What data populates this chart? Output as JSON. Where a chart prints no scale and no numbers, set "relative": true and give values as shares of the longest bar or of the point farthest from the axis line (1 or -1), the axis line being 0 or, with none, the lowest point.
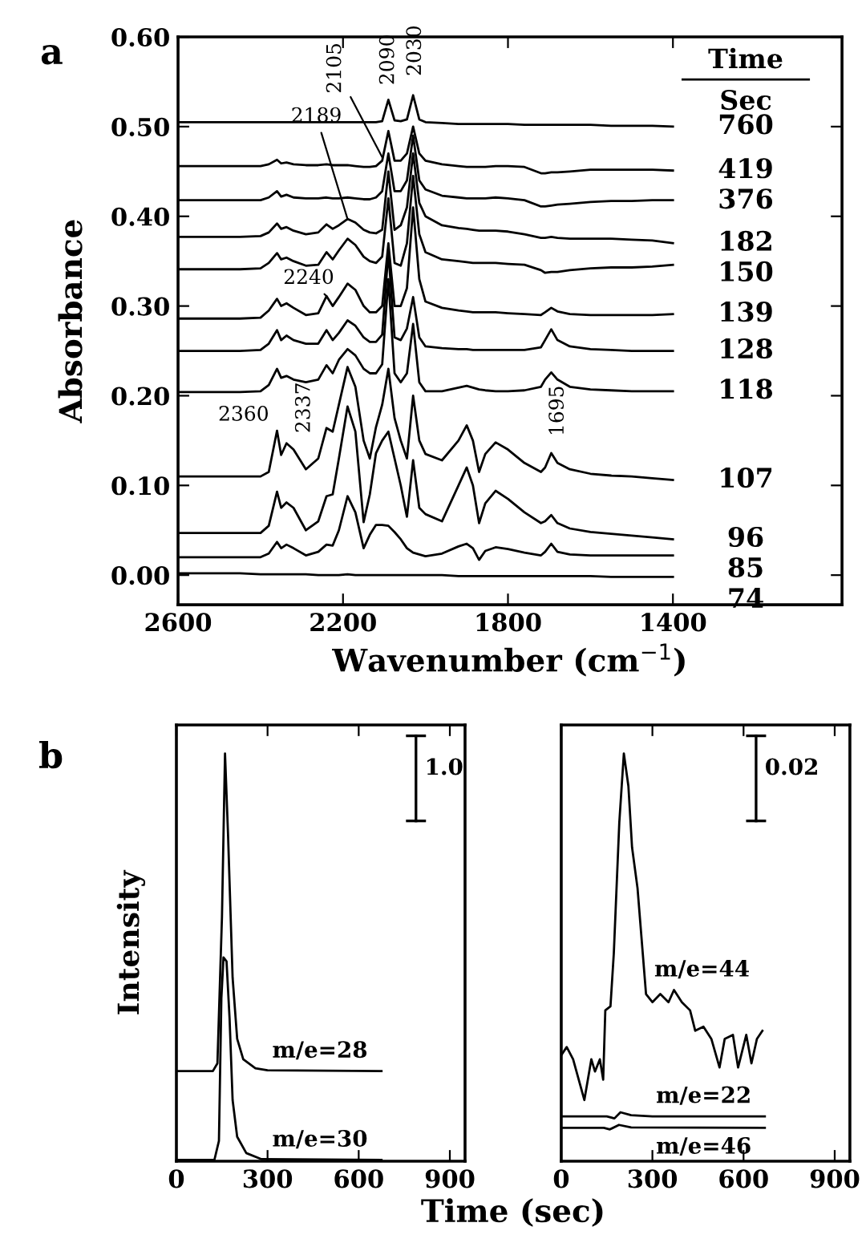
{
  "chart_data": [
    {
      "type": "line",
      "title": "a",
      "xlabel": "Wavenumber (cm$^{−1}$)",
      "ylabel": "Absorbance",
      "legend_title": "Time",
      "legend": "right",
      "color": "#000000",
      "xlim": [
        2600,
        990
      ],
      "xticks": [
        2600,
        2200,
        1800,
        1400
      ],
      "ylim": [
        -0.033,
        0.6
      ],
      "yticks": [
        {
          "value": 0,
          "label": "0.00"
        },
        {
          "value": 0.1,
          "label": "0.10"
        },
        {
          "value": 0.2,
          "label": "0.20"
        },
        {
          "value": 0.3,
          "label": "0.30"
        },
        {
          "value": 0.4,
          "label": "0.40"
        },
        {
          "value": 0.5,
          "label": "0.50"
        },
        {
          "value": 0.6,
          "label": "0.60"
        }
      ],
      "annotations": [
        {
          "text": "2105",
          "x": 2105,
          "y": 0.466
        },
        {
          "text": "2090",
          "x": 2090,
          "y": 0.53
        },
        {
          "text": "2030",
          "x": 2030,
          "y": 0.535
        },
        {
          "text": "2189",
          "x": 2189,
          "y": 0.397
        },
        {
          "text": "2240",
          "x": 2240,
          "y": 0.311
        },
        {
          "text": "2360",
          "x": 2360,
          "y": 0.161
        },
        {
          "text": "2337",
          "x": 2337,
          "y": 0.147
        },
        {
          "text": "1695",
          "x": 1695,
          "y": 0.136
        },
        "Sec"
      ],
      "x": [
        2600,
        2450,
        2400,
        2380,
        2360,
        2350,
        2337,
        2320,
        2290,
        2260,
        2240,
        2225,
        2210,
        2189,
        2170,
        2150,
        2135,
        2120,
        2105,
        2090,
        2075,
        2060,
        2045,
        2030,
        2015,
        2000,
        1960,
        1920,
        1900,
        1885,
        1870,
        1855,
        1830,
        1800,
        1760,
        1720,
        1710,
        1695,
        1680,
        1650,
        1600,
        1550,
        1500,
        1450,
        1400
      ],
      "series": [
        {
          "name": "760",
          "values": [
            0.505,
            0.505,
            0.505,
            0.505,
            0.505,
            0.505,
            0.505,
            0.505,
            0.505,
            0.505,
            0.505,
            0.505,
            0.505,
            0.505,
            0.505,
            0.505,
            0.505,
            0.505,
            0.506,
            0.53,
            0.507,
            0.506,
            0.508,
            0.535,
            0.508,
            0.505,
            0.504,
            0.503,
            0.503,
            0.503,
            0.503,
            0.503,
            0.503,
            0.503,
            0.502,
            0.502,
            0.502,
            0.502,
            0.502,
            0.502,
            0.502,
            0.501,
            0.501,
            0.501,
            0.5
          ]
        },
        {
          "name": "419",
          "values": [
            0.456,
            0.456,
            0.456,
            0.458,
            0.463,
            0.459,
            0.46,
            0.458,
            0.457,
            0.457,
            0.458,
            0.457,
            0.457,
            0.457,
            0.456,
            0.455,
            0.455,
            0.456,
            0.462,
            0.495,
            0.462,
            0.462,
            0.47,
            0.5,
            0.47,
            0.462,
            0.458,
            0.456,
            0.455,
            0.455,
            0.455,
            0.455,
            0.456,
            0.456,
            0.455,
            0.448,
            0.448,
            0.449,
            0.449,
            0.45,
            0.452,
            0.452,
            0.452,
            0.452,
            0.451
          ]
        },
        {
          "name": "376",
          "values": [
            0.418,
            0.418,
            0.418,
            0.421,
            0.428,
            0.422,
            0.424,
            0.421,
            0.42,
            0.42,
            0.421,
            0.42,
            0.42,
            0.421,
            0.42,
            0.419,
            0.419,
            0.421,
            0.428,
            0.47,
            0.428,
            0.428,
            0.44,
            0.49,
            0.44,
            0.43,
            0.423,
            0.421,
            0.42,
            0.42,
            0.42,
            0.42,
            0.421,
            0.42,
            0.418,
            0.411,
            0.411,
            0.412,
            0.413,
            0.414,
            0.416,
            0.417,
            0.417,
            0.418,
            0.418
          ]
        },
        {
          "name": "182",
          "values": [
            0.377,
            0.377,
            0.378,
            0.382,
            0.392,
            0.386,
            0.388,
            0.384,
            0.38,
            0.382,
            0.391,
            0.386,
            0.39,
            0.397,
            0.393,
            0.385,
            0.382,
            0.381,
            0.385,
            0.45,
            0.385,
            0.39,
            0.41,
            0.47,
            0.415,
            0.4,
            0.39,
            0.387,
            0.386,
            0.385,
            0.384,
            0.384,
            0.384,
            0.383,
            0.38,
            0.376,
            0.376,
            0.377,
            0.376,
            0.375,
            0.375,
            0.375,
            0.374,
            0.373,
            0.37
          ]
        },
        {
          "name": "150",
          "values": [
            0.341,
            0.341,
            0.342,
            0.348,
            0.359,
            0.352,
            0.354,
            0.35,
            0.345,
            0.346,
            0.36,
            0.352,
            0.362,
            0.375,
            0.368,
            0.355,
            0.35,
            0.348,
            0.355,
            0.42,
            0.348,
            0.345,
            0.37,
            0.445,
            0.38,
            0.36,
            0.352,
            0.35,
            0.349,
            0.348,
            0.348,
            0.348,
            0.348,
            0.347,
            0.346,
            0.34,
            0.337,
            0.338,
            0.338,
            0.34,
            0.342,
            0.343,
            0.343,
            0.344,
            0.346
          ]
        },
        {
          "name": "139",
          "values": [
            0.286,
            0.286,
            0.287,
            0.295,
            0.308,
            0.3,
            0.303,
            0.298,
            0.29,
            0.292,
            0.311,
            0.3,
            0.31,
            0.325,
            0.318,
            0.3,
            0.293,
            0.293,
            0.3,
            0.37,
            0.3,
            0.3,
            0.32,
            0.41,
            0.33,
            0.305,
            0.298,
            0.295,
            0.294,
            0.293,
            0.293,
            0.293,
            0.293,
            0.292,
            0.291,
            0.29,
            0.293,
            0.298,
            0.294,
            0.291,
            0.29,
            0.29,
            0.29,
            0.29,
            0.291
          ]
        },
        {
          "name": "128",
          "values": [
            0.25,
            0.25,
            0.251,
            0.258,
            0.273,
            0.262,
            0.267,
            0.262,
            0.258,
            0.258,
            0.273,
            0.262,
            0.27,
            0.284,
            0.278,
            0.265,
            0.26,
            0.26,
            0.268,
            0.36,
            0.265,
            0.262,
            0.275,
            0.31,
            0.265,
            0.255,
            0.253,
            0.252,
            0.252,
            0.251,
            0.251,
            0.251,
            0.251,
            0.251,
            0.251,
            0.254,
            0.262,
            0.274,
            0.262,
            0.255,
            0.252,
            0.251,
            0.25,
            0.25,
            0.25
          ]
        },
        {
          "name": "118",
          "values": [
            0.204,
            0.204,
            0.205,
            0.212,
            0.23,
            0.22,
            0.222,
            0.218,
            0.215,
            0.218,
            0.234,
            0.225,
            0.24,
            0.252,
            0.245,
            0.23,
            0.225,
            0.225,
            0.235,
            0.33,
            0.225,
            0.215,
            0.225,
            0.28,
            0.215,
            0.205,
            0.205,
            0.209,
            0.211,
            0.209,
            0.207,
            0.206,
            0.205,
            0.205,
            0.206,
            0.21,
            0.218,
            0.226,
            0.218,
            0.21,
            0.207,
            0.206,
            0.205,
            0.205,
            0.205
          ]
        },
        {
          "name": "107",
          "values": [
            0.11,
            0.11,
            0.11,
            0.115,
            0.161,
            0.134,
            0.147,
            0.14,
            0.118,
            0.13,
            0.164,
            0.16,
            0.19,
            0.232,
            0.21,
            0.15,
            0.13,
            0.165,
            0.19,
            0.23,
            0.175,
            0.15,
            0.13,
            0.2,
            0.15,
            0.135,
            0.128,
            0.15,
            0.167,
            0.15,
            0.115,
            0.135,
            0.148,
            0.14,
            0.125,
            0.115,
            0.12,
            0.136,
            0.125,
            0.118,
            0.113,
            0.111,
            0.11,
            0.108,
            0.106
          ]
        },
        {
          "name": "96",
          "values": [
            0.047,
            0.047,
            0.047,
            0.055,
            0.093,
            0.075,
            0.081,
            0.075,
            0.05,
            0.06,
            0.088,
            0.09,
            0.13,
            0.188,
            0.16,
            0.059,
            0.09,
            0.136,
            0.15,
            0.16,
            0.13,
            0.1,
            0.065,
            0.128,
            0.075,
            0.068,
            0.06,
            0.1,
            0.12,
            0.1,
            0.058,
            0.08,
            0.094,
            0.085,
            0.07,
            0.058,
            0.06,
            0.067,
            0.058,
            0.052,
            0.048,
            0.046,
            0.044,
            0.042,
            0.04
          ]
        },
        {
          "name": "85",
          "values": [
            0.02,
            0.02,
            0.02,
            0.024,
            0.037,
            0.03,
            0.034,
            0.03,
            0.022,
            0.026,
            0.034,
            0.033,
            0.05,
            0.088,
            0.07,
            0.03,
            0.045,
            0.056,
            0.056,
            0.055,
            0.048,
            0.04,
            0.03,
            0.025,
            0.023,
            0.021,
            0.024,
            0.032,
            0.035,
            0.03,
            0.017,
            0.027,
            0.031,
            0.029,
            0.025,
            0.022,
            0.026,
            0.035,
            0.026,
            0.023,
            0.022,
            0.022,
            0.022,
            0.022,
            0.022
          ]
        },
        {
          "name": "74",
          "values": [
            0.002,
            0.002,
            0.001,
            0.001,
            0.001,
            0.001,
            0.001,
            0.001,
            0.001,
            0.0,
            0.0,
            0.0,
            0.0,
            0.001,
            0.0,
            0.0,
            0.0,
            0.0,
            0.0,
            0.0,
            0.0,
            0.0,
            0.0,
            0.0,
            0.0,
            0.0,
            0.0,
            -0.001,
            -0.001,
            -0.001,
            -0.001,
            -0.001,
            -0.001,
            -0.001,
            -0.001,
            -0.001,
            -0.001,
            -0.001,
            -0.001,
            -0.001,
            -0.001,
            -0.002,
            -0.002,
            -0.002,
            -0.002
          ]
        }
      ]
    },
    {
      "type": "line",
      "title": "b",
      "xlabel": "Time (sec)",
      "ylabel": "Intensity",
      "relative": true,
      "color": "#000000",
      "xlim": [
        0,
        950
      ],
      "xticks": [
        0,
        300,
        600,
        900
      ],
      "annotations": [
        "1.0"
      ],
      "series": [
        {
          "name": "m/e=28",
          "x": [
            0,
            120,
            135,
            150,
            160,
            170,
            185,
            200,
            220,
            260,
            300,
            675
          ],
          "values": [
            0.221,
            0.221,
            0.24,
            0.6,
            1.0,
            0.8,
            0.45,
            0.3,
            0.25,
            0.228,
            0.223,
            0.221
          ]
        },
        {
          "name": "m/e=30",
          "x": [
            0,
            125,
            140,
            148,
            155,
            165,
            175,
            185,
            200,
            230,
            280,
            675
          ],
          "values": [
            0.003,
            0.003,
            0.05,
            0.4,
            0.5,
            0.49,
            0.35,
            0.15,
            0.06,
            0.02,
            0.005,
            0.003
          ]
        }
      ]
    },
    {
      "type": "line",
      "relative": true,
      "color": "#000000",
      "xlim": [
        0,
        950
      ],
      "xticks": [
        0,
        300,
        600,
        900
      ],
      "annotations": [
        "0.02"
      ],
      "series": [
        {
          "name": "m/e=44",
          "x": [
            0,
            18,
            39,
            76,
            99,
            111,
            127,
            138,
            145,
            162,
            173,
            191,
            206,
            221,
            233,
            251,
            279,
            300,
            326,
            353,
            371,
            397,
            424,
            441,
            468,
            494,
            521,
            538,
            565,
            582,
            609,
            626,
            644,
            662
          ],
          "values": [
            0.26,
            0.28,
            0.25,
            0.15,
            0.25,
            0.22,
            0.25,
            0.2,
            0.37,
            0.38,
            0.51,
            0.83,
            1.0,
            0.92,
            0.77,
            0.67,
            0.41,
            0.39,
            0.41,
            0.39,
            0.42,
            0.39,
            0.37,
            0.32,
            0.33,
            0.3,
            0.23,
            0.3,
            0.31,
            0.23,
            0.31,
            0.24,
            0.3,
            0.32
          ]
        },
        {
          "name": "m/e=22",
          "x": [
            0,
            150,
            175,
            195,
            230,
            300,
            670
          ],
          "values": [
            0.11,
            0.11,
            0.105,
            0.12,
            0.113,
            0.11,
            0.11
          ]
        },
        {
          "name": "m/e=46",
          "x": [
            0,
            140,
            160,
            190,
            230,
            670
          ],
          "values": [
            0.082,
            0.082,
            0.078,
            0.089,
            0.083,
            0.082
          ]
        }
      ]
    }
  ]
}
